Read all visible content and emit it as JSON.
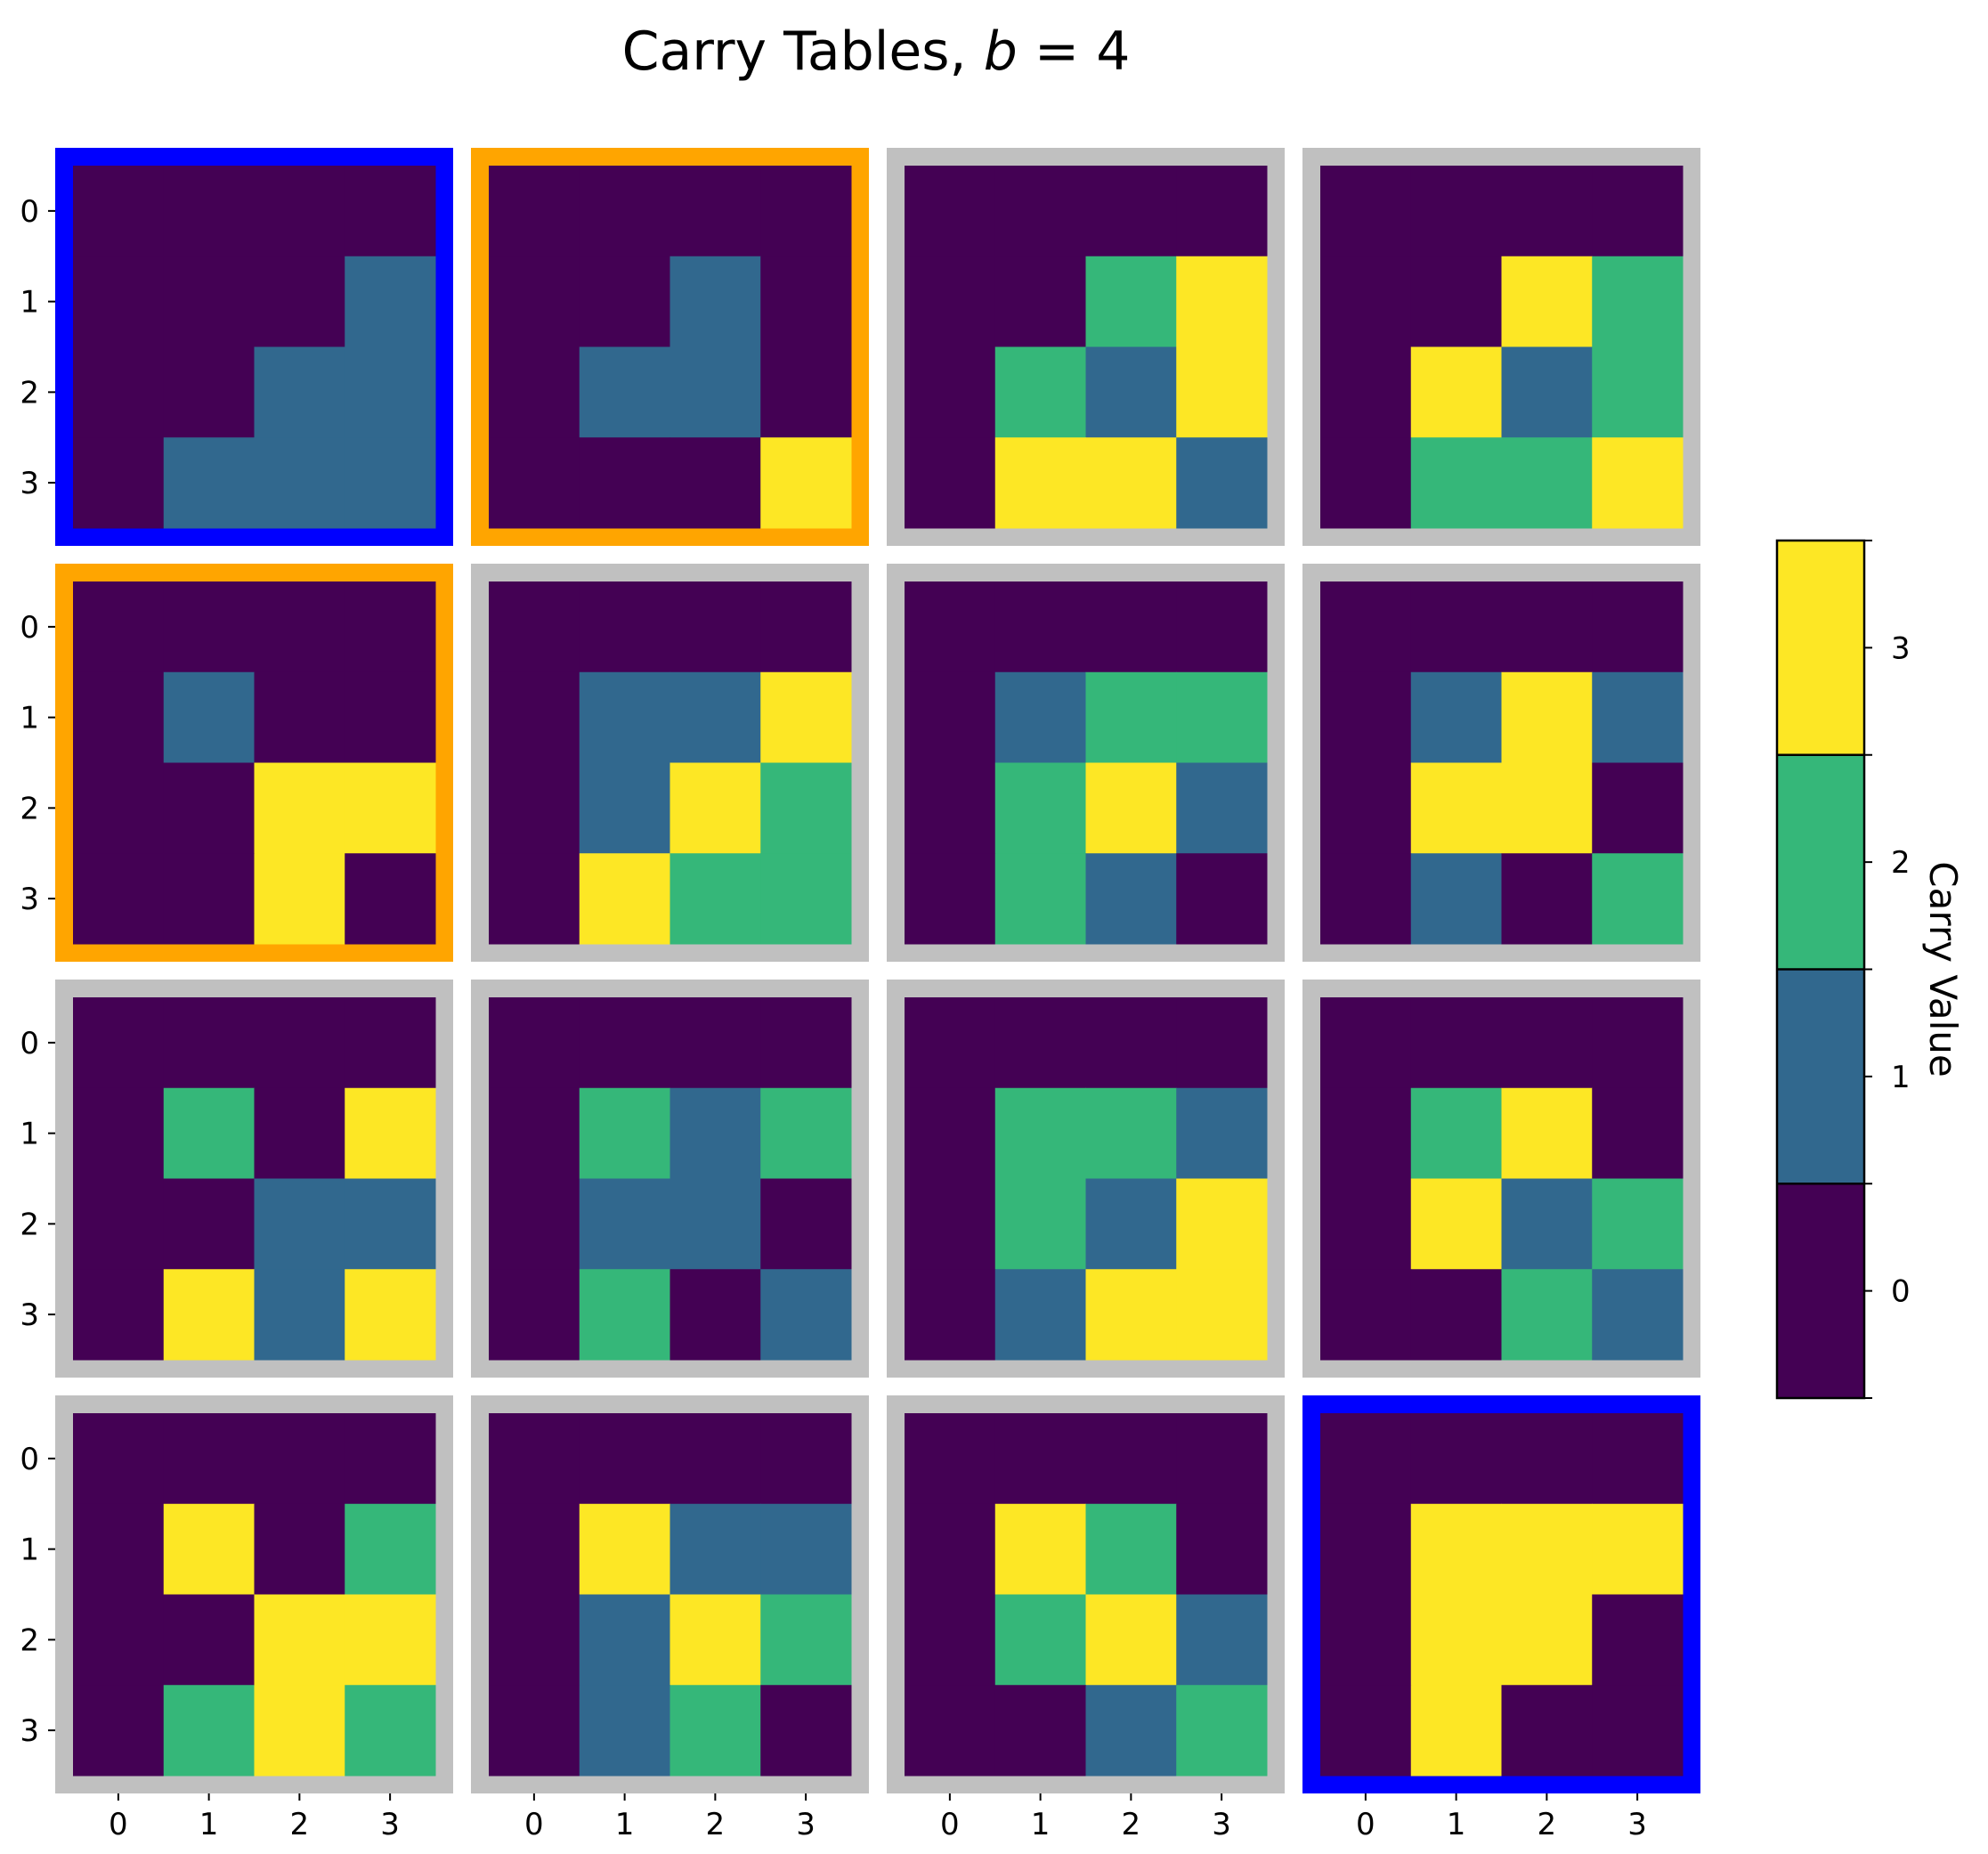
{
  "chart_data": {
    "type": "heatmap",
    "title": {
      "prefix": "Carry Tables, ",
      "var": "b",
      "eq": " = 4"
    },
    "grid_rows": 4,
    "grid_cols": 4,
    "row_tick_labels": [
      "0",
      "1",
      "2",
      "3"
    ],
    "col_tick_labels": [
      "0",
      "1",
      "2",
      "3"
    ],
    "palette": [
      "#440154",
      "#31688e",
      "#35b779",
      "#fde725"
    ],
    "frame_colors": {
      "blue": "#0000ff",
      "orange": "#ffa500",
      "gray": "#c0c0c0"
    },
    "tables": [
      {
        "frame": "blue",
        "cells": [
          [
            0,
            0,
            0,
            0
          ],
          [
            0,
            0,
            0,
            1
          ],
          [
            0,
            0,
            1,
            1
          ],
          [
            0,
            1,
            1,
            1
          ]
        ]
      },
      {
        "frame": "orange",
        "cells": [
          [
            0,
            0,
            0,
            0
          ],
          [
            0,
            0,
            1,
            0
          ],
          [
            0,
            1,
            1,
            0
          ],
          [
            0,
            0,
            0,
            3
          ]
        ]
      },
      {
        "frame": "gray",
        "cells": [
          [
            0,
            0,
            0,
            0
          ],
          [
            0,
            0,
            2,
            3
          ],
          [
            0,
            2,
            1,
            3
          ],
          [
            0,
            3,
            3,
            1
          ]
        ]
      },
      {
        "frame": "gray",
        "cells": [
          [
            0,
            0,
            0,
            0
          ],
          [
            0,
            0,
            3,
            2
          ],
          [
            0,
            3,
            1,
            2
          ],
          [
            0,
            2,
            2,
            3
          ]
        ]
      },
      {
        "frame": "orange",
        "cells": [
          [
            0,
            0,
            0,
            0
          ],
          [
            0,
            1,
            0,
            0
          ],
          [
            0,
            0,
            3,
            3
          ],
          [
            0,
            0,
            3,
            0
          ]
        ]
      },
      {
        "frame": "gray",
        "cells": [
          [
            0,
            0,
            0,
            0
          ],
          [
            0,
            1,
            1,
            3
          ],
          [
            0,
            1,
            3,
            2
          ],
          [
            0,
            3,
            2,
            2
          ]
        ]
      },
      {
        "frame": "gray",
        "cells": [
          [
            0,
            0,
            0,
            0
          ],
          [
            0,
            1,
            2,
            2
          ],
          [
            0,
            2,
            3,
            1
          ],
          [
            0,
            2,
            1,
            0
          ]
        ]
      },
      {
        "frame": "gray",
        "cells": [
          [
            0,
            0,
            0,
            0
          ],
          [
            0,
            1,
            3,
            1
          ],
          [
            0,
            3,
            3,
            0
          ],
          [
            0,
            1,
            0,
            2
          ]
        ]
      },
      {
        "frame": "gray",
        "cells": [
          [
            0,
            0,
            0,
            0
          ],
          [
            0,
            2,
            0,
            3
          ],
          [
            0,
            0,
            1,
            1
          ],
          [
            0,
            3,
            1,
            3
          ]
        ]
      },
      {
        "frame": "gray",
        "cells": [
          [
            0,
            0,
            0,
            0
          ],
          [
            0,
            2,
            1,
            2
          ],
          [
            0,
            1,
            1,
            0
          ],
          [
            0,
            2,
            0,
            1
          ]
        ]
      },
      {
        "frame": "gray",
        "cells": [
          [
            0,
            0,
            0,
            0
          ],
          [
            0,
            2,
            2,
            1
          ],
          [
            0,
            2,
            1,
            3
          ],
          [
            0,
            1,
            3,
            3
          ]
        ]
      },
      {
        "frame": "gray",
        "cells": [
          [
            0,
            0,
            0,
            0
          ],
          [
            0,
            2,
            3,
            0
          ],
          [
            0,
            3,
            1,
            2
          ],
          [
            0,
            0,
            2,
            1
          ]
        ]
      },
      {
        "frame": "gray",
        "cells": [
          [
            0,
            0,
            0,
            0
          ],
          [
            0,
            3,
            0,
            2
          ],
          [
            0,
            0,
            3,
            3
          ],
          [
            0,
            2,
            3,
            2
          ]
        ]
      },
      {
        "frame": "gray",
        "cells": [
          [
            0,
            0,
            0,
            0
          ],
          [
            0,
            3,
            1,
            1
          ],
          [
            0,
            1,
            3,
            2
          ],
          [
            0,
            1,
            2,
            0
          ]
        ]
      },
      {
        "frame": "gray",
        "cells": [
          [
            0,
            0,
            0,
            0
          ],
          [
            0,
            3,
            2,
            0
          ],
          [
            0,
            2,
            3,
            1
          ],
          [
            0,
            0,
            1,
            2
          ]
        ]
      },
      {
        "frame": "blue",
        "cells": [
          [
            0,
            0,
            0,
            0
          ],
          [
            0,
            3,
            3,
            3
          ],
          [
            0,
            3,
            3,
            0
          ],
          [
            0,
            3,
            0,
            0
          ]
        ]
      }
    ],
    "colorbar": {
      "label": "Carry Value",
      "tick_labels": [
        "0",
        "1",
        "2",
        "3"
      ],
      "range": [
        -0.5,
        3.5
      ]
    }
  }
}
